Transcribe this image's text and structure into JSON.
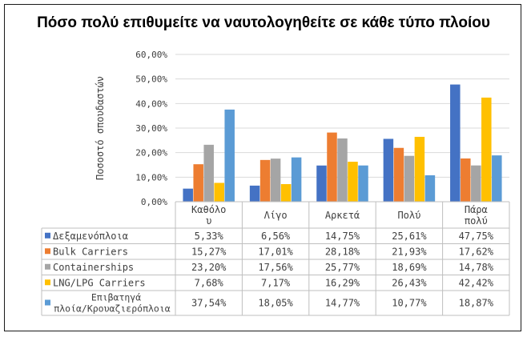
{
  "chart_data": {
    "type": "bar",
    "title": "Πόσο πολύ επιθυμείτε να ναυτολογηθείτε σε κάθε τύπο πλοίου",
    "ylabel": "Ποσοστό σπουδαστών",
    "xlabel": "",
    "ylim": [
      0,
      60
    ],
    "y_ticks": [
      "0,00%",
      "10,00%",
      "20,00%",
      "30,00%",
      "40,00%",
      "50,00%",
      "60,00%"
    ],
    "categories": [
      "Καθόλο υ",
      "Λίγο",
      "Αρκετά",
      "Πολύ",
      "Πάρα πολύ"
    ],
    "grid": true,
    "legend": "data-table",
    "series": [
      {
        "name": "Δεξαμενόπλοια",
        "color": "#4472C4",
        "values": [
          5.33,
          6.56,
          14.75,
          25.61,
          47.75
        ],
        "labels": [
          "5,33%",
          "6,56%",
          "14,75%",
          "25,61%",
          "47,75%"
        ]
      },
      {
        "name": "Bulk Carriers",
        "color": "#ED7D31",
        "values": [
          15.27,
          17.01,
          28.18,
          21.93,
          17.62
        ],
        "labels": [
          "15,27%",
          "17,01%",
          "28,18%",
          "21,93%",
          "17,62%"
        ]
      },
      {
        "name": "Containerships",
        "color": "#A5A5A5",
        "values": [
          23.2,
          17.56,
          25.77,
          18.69,
          14.78
        ],
        "labels": [
          "23,20%",
          "17,56%",
          "25,77%",
          "18,69%",
          "14,78%"
        ]
      },
      {
        "name": "LNG/LPG Carriers",
        "color": "#FFC000",
        "values": [
          7.68,
          7.17,
          16.29,
          26.43,
          42.42
        ],
        "labels": [
          "7,68%",
          "7,17%",
          "16,29%",
          "26,43%",
          "42,42%"
        ]
      },
      {
        "name": "Επιβατηγά πλοία/Κρουαζιερόπλοια",
        "color": "#5B9BD5",
        "values": [
          37.54,
          18.05,
          14.77,
          10.77,
          18.87
        ],
        "labels": [
          "37,54%",
          "18,05%",
          "14,77%",
          "10,77%",
          "18,87%"
        ]
      }
    ]
  }
}
